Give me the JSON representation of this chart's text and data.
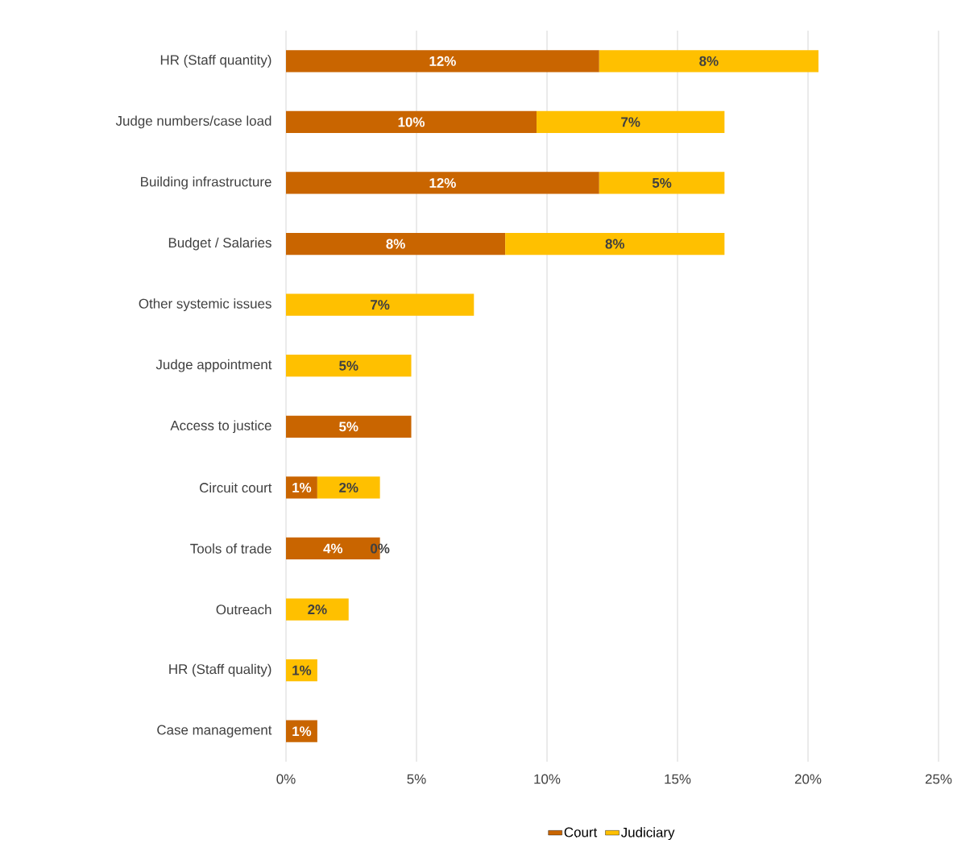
{
  "chart_data": {
    "type": "bar",
    "orientation": "horizontal",
    "stacked": true,
    "categories": [
      "HR (Staff quantity)",
      "Judge numbers/case load",
      "Building infrastructure",
      "Budget / Salaries",
      "Other systemic issues",
      "Judge appointment",
      "Access to justice",
      "Circuit court",
      "Tools of trade",
      "Outreach",
      "HR (Staff quality)",
      "Case management"
    ],
    "series": [
      {
        "name": "Court",
        "color": "#c96500",
        "values": [
          12.0,
          9.6,
          12.0,
          8.4,
          null,
          null,
          4.8,
          1.2,
          3.6,
          null,
          null,
          1.2
        ],
        "value_labels": [
          "12%",
          "10%",
          "12%",
          "8%",
          null,
          null,
          "5%",
          "1%",
          "4%",
          null,
          null,
          "1%"
        ]
      },
      {
        "name": "Judiciary",
        "color": "#ffc000",
        "values": [
          8.4,
          7.2,
          4.8,
          8.4,
          7.2,
          4.8,
          null,
          2.4,
          0,
          2.4,
          1.2,
          null
        ],
        "value_labels": [
          "8%",
          "7%",
          "5%",
          "8%",
          "7%",
          "5%",
          null,
          "2%",
          "0%",
          "2%",
          "1%",
          null
        ]
      }
    ],
    "xlim": [
      0,
      25
    ],
    "xticks": [
      {
        "value": 0,
        "label": "0%"
      },
      {
        "value": 5,
        "label": "5%"
      },
      {
        "value": 10,
        "label": "10%"
      },
      {
        "value": 15,
        "label": "15%"
      },
      {
        "value": 20,
        "label": "20%"
      },
      {
        "value": 25,
        "label": "25%"
      }
    ],
    "grid": "x",
    "legend": "bottom"
  }
}
